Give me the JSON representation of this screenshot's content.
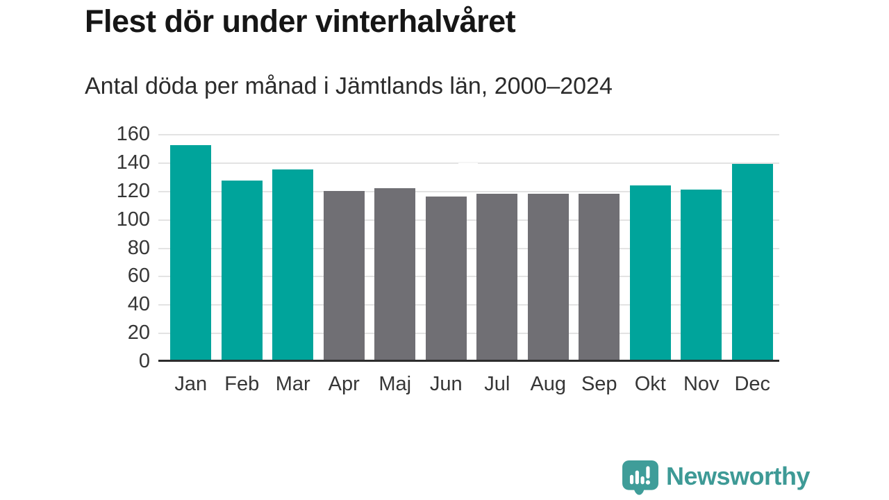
{
  "page": {
    "background": "#ffffff"
  },
  "header": {
    "title": "Flest dör under vinterhalvåret",
    "subtitle": "Antal döda per månad i Jämtlands län, 2000–2024"
  },
  "chart_data": {
    "type": "bar",
    "title": "Flest dör under vinterhalvåret",
    "subtitle": "Antal döda per månad i Jämtlands län, 2000–2024",
    "categories": [
      "Jan",
      "Feb",
      "Mar",
      "Apr",
      "Maj",
      "Jun",
      "Jul",
      "Aug",
      "Sep",
      "Okt",
      "Nov",
      "Dec"
    ],
    "values": [
      152,
      127,
      135,
      120,
      122,
      116,
      118,
      118,
      118,
      124,
      121,
      139
    ],
    "bar_colors": [
      "winter",
      "winter",
      "winter",
      "summer",
      "summer",
      "summer",
      "summer",
      "summer",
      "summer",
      "winter",
      "winter",
      "winter"
    ],
    "series_colors": {
      "winter": "#00a49b",
      "summer": "#706f74"
    },
    "xlabel": "",
    "ylabel": "",
    "ylim": [
      0,
      160
    ],
    "yticks": [
      0,
      20,
      40,
      60,
      80,
      100,
      120,
      140,
      160
    ],
    "grid": true,
    "gridline_color": "#e3e3e3",
    "axis_line_color": "#2d2d2d",
    "legend": "none"
  },
  "footer": {
    "brand": "Newsworthy",
    "brand_color": "#3e9a96",
    "icon": "speech-bubble-bar-chart-exclamation-icon",
    "icon_color": "#3f9d99"
  }
}
